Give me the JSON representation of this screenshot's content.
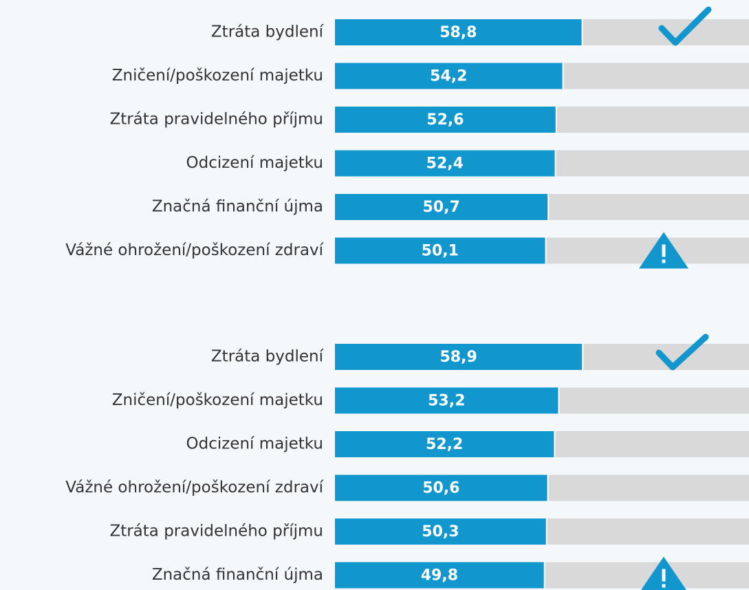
{
  "chart_data": [
    {
      "type": "bar",
      "orientation": "horizontal",
      "color": "#1196cd",
      "track_color": "#d9d9d9",
      "xlim": [
        0,
        100
      ],
      "categories": [
        "Ztráta bydlení",
        "Zničení/poškození majetku",
        "Ztráta pravidelného příjmu",
        "Odcizení majetku",
        "Značná finanční újma",
        "Vážné ohrožení/poškození zdraví"
      ],
      "values": [
        58.8,
        54.2,
        52.6,
        52.4,
        50.7,
        50.1
      ],
      "value_labels": [
        "58,8",
        "54,2",
        "52,6",
        "52,4",
        "50,7",
        "50,1"
      ]
    },
    {
      "type": "bar",
      "orientation": "horizontal",
      "color": "#1196cd",
      "track_color": "#d9d9d9",
      "xlim": [
        0,
        100
      ],
      "categories": [
        "Ztráta bydlení",
        "Zničení/poškození majetku",
        "Odcizení majetku",
        "Vážné ohrožení/poškození zdraví",
        "Ztráta pravidelného příjmu",
        "Značná finanční újma"
      ],
      "values": [
        58.9,
        53.2,
        52.2,
        50.6,
        50.3,
        49.8
      ],
      "value_labels": [
        "58,9",
        "53,2",
        "52,2",
        "50,6",
        "50,3",
        "49,8"
      ]
    }
  ]
}
